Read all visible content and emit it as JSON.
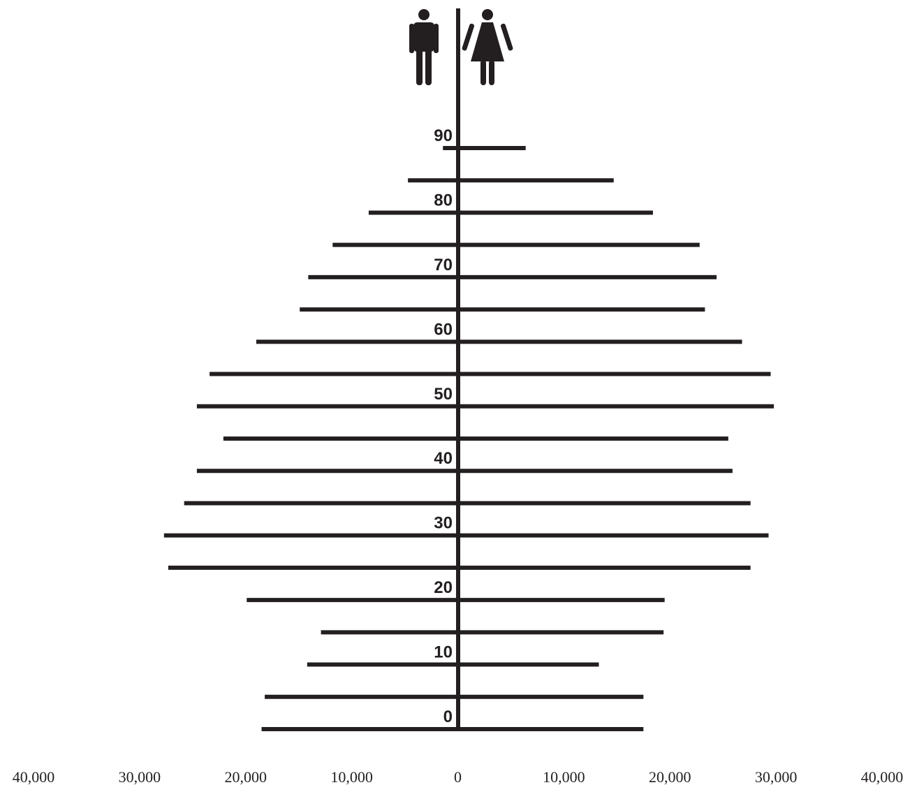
{
  "chart_data": {
    "type": "population-pyramid",
    "categories": [
      "0",
      null,
      "10",
      null,
      "20",
      null,
      "30",
      null,
      "40",
      null,
      "50",
      null,
      "60",
      null,
      "70",
      null,
      "80",
      null,
      "90"
    ],
    "series": [
      {
        "color": "#231f20",
        "values": [
          -18500,
          -18200,
          -14200,
          -12900,
          -19900,
          -27300,
          -27700,
          -25800,
          -24600,
          -22100,
          -24600,
          -23400,
          -19000,
          -14900,
          -14100,
          -11800,
          -8400,
          -4700,
          -1400
        ]
      },
      {
        "color": "#231f20",
        "values": [
          17500,
          17500,
          13300,
          19400,
          19500,
          27600,
          29300,
          27600,
          25900,
          25500,
          29800,
          29500,
          26800,
          23300,
          24400,
          22800,
          18400,
          14700,
          6400
        ]
      }
    ],
    "xlim": [
      -40000,
      40000
    ],
    "xticks": [
      {
        "value": -40000,
        "label": "40,000"
      },
      {
        "value": -30000,
        "label": "30,000"
      },
      {
        "value": -20000,
        "label": "20,000"
      },
      {
        "value": -10000,
        "label": "10,000"
      },
      0,
      {
        "value": 10000,
        "label": "10,000"
      },
      {
        "value": 20000,
        "label": "20,000"
      },
      {
        "value": 30000,
        "label": "30,000"
      },
      {
        "value": 40000,
        "label": "40,000"
      }
    ]
  }
}
